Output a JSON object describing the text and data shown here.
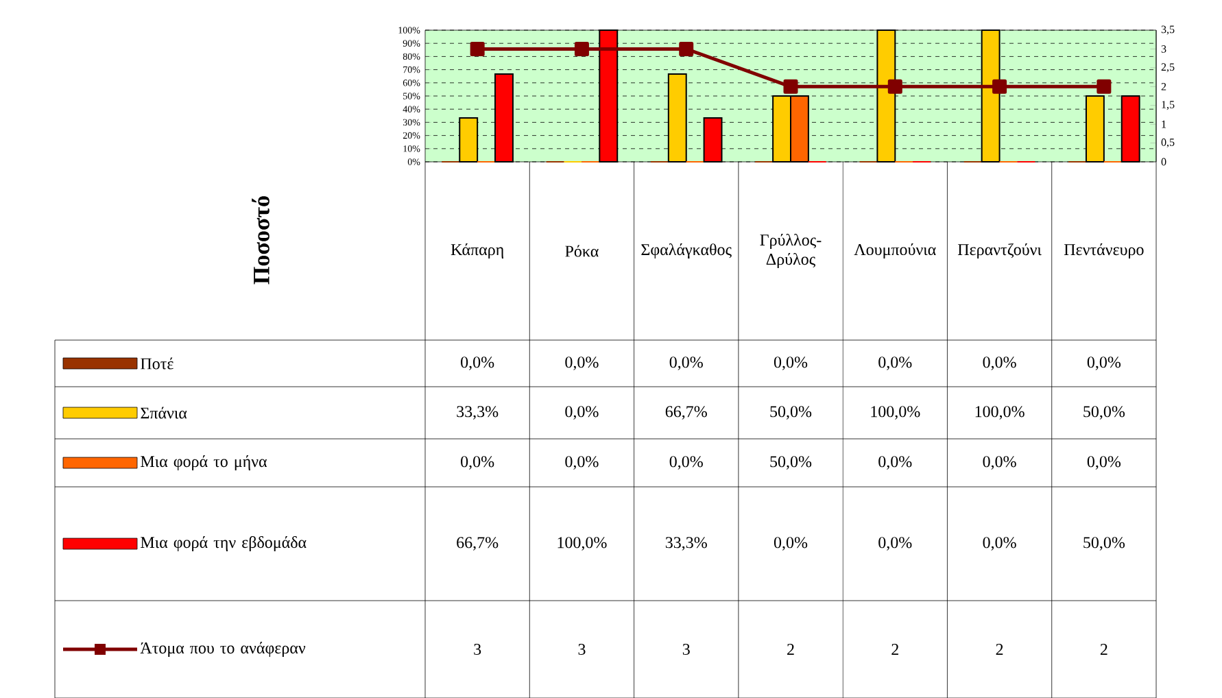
{
  "chart_data": {
    "type": "bar",
    "annotations": [
      "Ποσοστό"
    ],
    "categories": [
      "Κάπαρη",
      "Ρόκα",
      "Σφαλάγκαθος",
      "Γρύλλος-Δρύλος",
      "Λουμπούνια",
      "Περαντζούνι",
      "Πεντάνευρο"
    ],
    "series": [
      {
        "name": "Ποτέ",
        "color": "#993300",
        "values": [
          0,
          0,
          0,
          0,
          0,
          0,
          0
        ],
        "value_labels": [
          "0,0%",
          "0,0%",
          "0,0%",
          "0,0%",
          "0,0%",
          "0,0%",
          "0,0%"
        ]
      },
      {
        "name": "Σπάνια",
        "color": "#ffcc00",
        "values": [
          33.3,
          0,
          66.7,
          50,
          100,
          100,
          50
        ],
        "value_labels": [
          "33,3%",
          "0,0%",
          "66,7%",
          "50,0%",
          "100,0%",
          "100,0%",
          "50,0%"
        ]
      },
      {
        "name": "Μια φορά το μήνα",
        "color": "#ff6600",
        "values": [
          0,
          0,
          0,
          50,
          0,
          0,
          0
        ],
        "value_labels": [
          "0,0%",
          "0,0%",
          "0,0%",
          "50,0%",
          "0,0%",
          "0,0%",
          "0,0%"
        ]
      },
      {
        "name": "Μια φορά την εβδομάδα",
        "color": "#ff0000",
        "values": [
          66.7,
          100,
          33.3,
          0,
          0,
          0,
          50
        ],
        "value_labels": [
          "66,7%",
          "100,0%",
          "33,3%",
          "0,0%",
          "0,0%",
          "0,0%",
          "50,0%"
        ]
      },
      {
        "name": "Άτομα που το ανάφεραν",
        "type": "line",
        "axis": "y2",
        "color": "#800000",
        "marker": "square",
        "line_style": "solid",
        "values": [
          3,
          3,
          3,
          2,
          2,
          2,
          2
        ],
        "value_labels": [
          "3",
          "3",
          "3",
          "2",
          "2",
          "2",
          "2"
        ]
      }
    ],
    "ylim": [
      0,
      100
    ],
    "yticks": [
      {
        "value": 0,
        "label": "0%"
      },
      {
        "value": 10,
        "label": "10%"
      },
      {
        "value": 20,
        "label": "20%"
      },
      {
        "value": 30,
        "label": "30%"
      },
      {
        "value": 40,
        "label": "40%"
      },
      {
        "value": 50,
        "label": "50%"
      },
      {
        "value": 60,
        "label": "60%"
      },
      {
        "value": 70,
        "label": "70%"
      },
      {
        "value": 80,
        "label": "80%"
      },
      {
        "value": 90,
        "label": "90%"
      },
      {
        "value": 100,
        "label": "100%"
      }
    ],
    "y2lim": [
      0,
      3.5
    ],
    "y2ticks": [
      0,
      {
        "value": 0.5,
        "label": "0,5"
      },
      1,
      {
        "value": 1.5,
        "label": "1,5"
      },
      2,
      {
        "value": 2.5,
        "label": "2,5"
      },
      3,
      {
        "value": 3.5,
        "label": "3,5"
      }
    ],
    "grid": "y",
    "legend": "bottom"
  }
}
